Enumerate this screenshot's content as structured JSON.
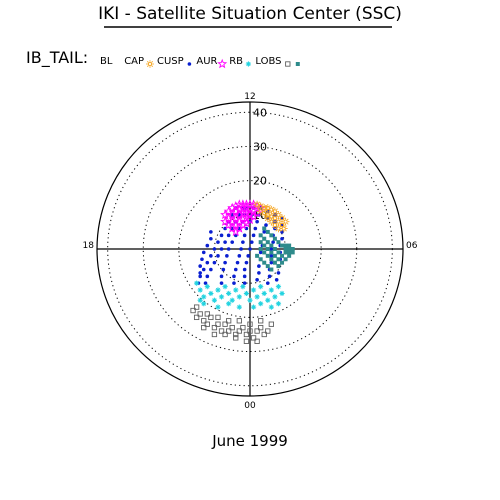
{
  "header": {
    "title": "IKI - Satellite Situation Center (SSC)",
    "legend_label": "IB_TAIL:"
  },
  "footer": {
    "caption": "June 1999"
  },
  "chart_data": {
    "type": "scatter",
    "projection": "polar",
    "radial_ticks": [
      "10",
      "20",
      "30",
      "40"
    ],
    "radial_values": [
      10,
      20,
      30,
      40
    ],
    "rmax": 43,
    "angular_labels": [
      {
        "text": "12",
        "angle_deg": 90
      },
      {
        "text": "18",
        "angle_deg": 180
      },
      {
        "text": "00",
        "angle_deg": 270
      },
      {
        "text": "06",
        "angle_deg": 0
      }
    ],
    "grid": true,
    "legend": [
      {
        "name": "BL",
        "color": "#000000",
        "marker": "none"
      },
      {
        "name": "CAP",
        "color": "#f5a623",
        "marker": "sun"
      },
      {
        "name": "CUSP",
        "color": "#0a1fd1",
        "marker": "dot"
      },
      {
        "name": "AUR",
        "color": "#ff00ff",
        "marker": "star"
      },
      {
        "name": "RB",
        "color": "#22d3e0",
        "marker": "asterisk"
      },
      {
        "name": "LOBS",
        "color": "#606060",
        "marker": "square"
      },
      {
        "name": "",
        "color": "#2e8b8b",
        "marker": "filled-square"
      }
    ],
    "series": [
      {
        "name": "CUSP",
        "color": "#0a1fd1",
        "marker": "dot",
        "points": [
          [
            -4,
            12
          ],
          [
            -5,
            10
          ],
          [
            -6,
            8
          ],
          [
            -7,
            6
          ],
          [
            -8,
            4
          ],
          [
            -9,
            2
          ],
          [
            -10,
            0
          ],
          [
            -11,
            -2
          ],
          [
            -12,
            -4
          ],
          [
            -13,
            -6
          ],
          [
            -14,
            -8
          ],
          [
            -14.5,
            -10
          ],
          [
            -2,
            12
          ],
          [
            -3,
            10
          ],
          [
            -4,
            8
          ],
          [
            -5,
            6
          ],
          [
            -6,
            4
          ],
          [
            -7,
            2
          ],
          [
            -8,
            0
          ],
          [
            -9,
            -2
          ],
          [
            -10,
            -4
          ],
          [
            -11,
            -6
          ],
          [
            -12,
            -8
          ],
          [
            -12.5,
            -10
          ],
          [
            -1,
            12
          ],
          [
            -1.5,
            10
          ],
          [
            -2,
            8
          ],
          [
            -3,
            6
          ],
          [
            -4,
            4
          ],
          [
            -5,
            2
          ],
          [
            -6,
            0
          ],
          [
            -6.5,
            -2
          ],
          [
            -7,
            -4
          ],
          [
            -7.5,
            -6
          ],
          [
            -8,
            -8
          ],
          [
            -8,
            -10
          ],
          [
            1,
            12
          ],
          [
            0.5,
            10
          ],
          [
            0,
            8
          ],
          [
            -1,
            6
          ],
          [
            -1.5,
            4
          ],
          [
            -2,
            2
          ],
          [
            -2.5,
            0
          ],
          [
            -3,
            -2
          ],
          [
            -3.5,
            -4
          ],
          [
            -4,
            -6
          ],
          [
            -4.5,
            -8
          ],
          [
            -4.5,
            -10
          ],
          [
            3,
            12
          ],
          [
            2.5,
            10
          ],
          [
            2,
            8
          ],
          [
            1.5,
            6
          ],
          [
            1,
            4
          ],
          [
            0.5,
            2
          ],
          [
            0,
            0
          ],
          [
            -0.5,
            -2
          ],
          [
            -1,
            -4
          ],
          [
            -1.5,
            -6
          ],
          [
            -1.5,
            -8
          ],
          [
            -1.5,
            -10
          ],
          [
            5,
            11
          ],
          [
            5,
            9
          ],
          [
            4.5,
            7
          ],
          [
            4,
            5
          ],
          [
            4,
            3
          ],
          [
            3.5,
            1
          ],
          [
            3,
            -1
          ],
          [
            3,
            -3
          ],
          [
            2.5,
            -5
          ],
          [
            2.5,
            -7
          ],
          [
            2,
            -9
          ],
          [
            7,
            10
          ],
          [
            7,
            8
          ],
          [
            7,
            6
          ],
          [
            6.5,
            4
          ],
          [
            6.5,
            2
          ],
          [
            6,
            0
          ],
          [
            6,
            -2
          ],
          [
            6,
            -4
          ],
          [
            5.5,
            -6
          ],
          [
            5.5,
            -8
          ],
          [
            5,
            -10
          ],
          [
            9,
            9
          ],
          [
            9,
            7
          ],
          [
            9,
            5
          ],
          [
            9,
            3
          ],
          [
            8.5,
            1
          ],
          [
            8.5,
            -1
          ],
          [
            8.5,
            -3
          ],
          [
            8,
            -5
          ],
          [
            8,
            -7
          ],
          [
            7.5,
            -9
          ],
          [
            -11,
            5
          ],
          [
            -11,
            3
          ],
          [
            -12,
            1
          ],
          [
            -13,
            -1
          ],
          [
            -13.5,
            -3
          ],
          [
            -14,
            -5
          ],
          [
            -14,
            -7
          ]
        ]
      },
      {
        "name": "AUR",
        "color": "#ff00ff",
        "marker": "star",
        "points": [
          [
            -7,
            10
          ],
          [
            -6,
            11
          ],
          [
            -5,
            12
          ],
          [
            -4,
            12.5
          ],
          [
            -3,
            13
          ],
          [
            -2,
            13
          ],
          [
            -1,
            13
          ],
          [
            0,
            13
          ],
          [
            1,
            13
          ],
          [
            2,
            12.5
          ],
          [
            3,
            12
          ],
          [
            -7,
            8
          ],
          [
            -6,
            9
          ],
          [
            -5,
            10
          ],
          [
            -4,
            11
          ],
          [
            -3,
            11.5
          ],
          [
            -2,
            12
          ],
          [
            -1,
            12
          ],
          [
            0,
            11.5
          ],
          [
            1,
            11
          ],
          [
            2,
            10.5
          ],
          [
            -6,
            7
          ],
          [
            -5,
            8
          ],
          [
            -4,
            9
          ],
          [
            -3,
            10
          ],
          [
            -2,
            10.5
          ],
          [
            -1,
            10.5
          ],
          [
            0,
            10
          ],
          [
            1,
            9.5
          ],
          [
            -5,
            6
          ],
          [
            -4,
            7
          ],
          [
            -3,
            8
          ],
          [
            -2,
            9
          ],
          [
            -1,
            9
          ],
          [
            0,
            8.5
          ],
          [
            -4,
            5
          ],
          [
            -3,
            6
          ],
          [
            -2,
            7
          ],
          [
            -1,
            7.5
          ]
        ]
      },
      {
        "name": "CAP",
        "color": "#f5a623",
        "marker": "sun",
        "points": [
          [
            2,
            13
          ],
          [
            3,
            12.5
          ],
          [
            4,
            12
          ],
          [
            5,
            12
          ],
          [
            6,
            11.5
          ],
          [
            7,
            11
          ],
          [
            8,
            10
          ],
          [
            9,
            9
          ],
          [
            10,
            8
          ],
          [
            3,
            11
          ],
          [
            4,
            10.5
          ],
          [
            5,
            10
          ],
          [
            6,
            9.5
          ],
          [
            7,
            9
          ],
          [
            8,
            8
          ],
          [
            9,
            7
          ],
          [
            9.5,
            6
          ],
          [
            5,
            9
          ],
          [
            6,
            8
          ],
          [
            7,
            7
          ],
          [
            8,
            6
          ]
        ]
      },
      {
        "name": "RB",
        "color": "#22d3e0",
        "marker": "asterisk",
        "points": [
          [
            -15,
            -10
          ],
          [
            -14,
            -12
          ],
          [
            -13,
            -14
          ],
          [
            -12,
            -11
          ],
          [
            -11,
            -13
          ],
          [
            -10,
            -15
          ],
          [
            -9,
            -12
          ],
          [
            -8,
            -14
          ],
          [
            -7,
            -11
          ],
          [
            -6,
            -13
          ],
          [
            -5,
            -15
          ],
          [
            -4,
            -12
          ],
          [
            -3,
            -14
          ],
          [
            -2,
            -11
          ],
          [
            -1,
            -13
          ],
          [
            0,
            -15
          ],
          [
            1,
            -12
          ],
          [
            2,
            -14
          ],
          [
            3,
            -11
          ],
          [
            4,
            -13
          ],
          [
            5,
            -15
          ],
          [
            6,
            -12
          ],
          [
            7,
            -14
          ],
          [
            8,
            -11
          ],
          [
            9,
            -13
          ],
          [
            -13,
            -16
          ],
          [
            -9,
            -17
          ],
          [
            -3,
            -17
          ],
          [
            3,
            -16
          ],
          [
            8,
            -16
          ],
          [
            -14,
            -15
          ],
          [
            -6,
            -16
          ],
          [
            1,
            -17
          ],
          [
            6,
            -17
          ]
        ]
      },
      {
        "name": "LOBS",
        "color": "#606060",
        "marker": "square",
        "points": [
          [
            -16,
            -18
          ],
          [
            -15,
            -20
          ],
          [
            -14,
            -19
          ],
          [
            -13,
            -21
          ],
          [
            -12,
            -22
          ],
          [
            -11,
            -20
          ],
          [
            -10,
            -23
          ],
          [
            -9,
            -22
          ],
          [
            -8,
            -24
          ],
          [
            -7,
            -22
          ],
          [
            -6,
            -24
          ],
          [
            -5,
            -23
          ],
          [
            -4,
            -25
          ],
          [
            -3,
            -24
          ],
          [
            -2,
            -23
          ],
          [
            -1,
            -25
          ],
          [
            0,
            -24
          ],
          [
            1,
            -26
          ],
          [
            2,
            -24
          ],
          [
            3,
            -23
          ],
          [
            4,
            -25
          ],
          [
            5,
            -24
          ],
          [
            6,
            -22
          ],
          [
            -15,
            -17
          ],
          [
            -12,
            -19
          ],
          [
            -9,
            -20
          ],
          [
            -6,
            -21
          ],
          [
            -3,
            -21
          ],
          [
            0,
            -22
          ],
          [
            3,
            -21
          ],
          [
            -13,
            -23
          ],
          [
            -10,
            -25
          ],
          [
            -7,
            -25
          ],
          [
            -4,
            -26
          ],
          [
            -1,
            -27
          ],
          [
            2,
            -27
          ]
        ]
      },
      {
        "name": "",
        "color": "#2e8b8b",
        "marker": "filled-square",
        "points": [
          [
            4,
            6
          ],
          [
            5,
            5
          ],
          [
            6,
            4
          ],
          [
            7,
            3
          ],
          [
            8,
            2
          ],
          [
            9,
            1
          ],
          [
            10,
            0
          ],
          [
            11,
            -1
          ],
          [
            3,
            4
          ],
          [
            4,
            3
          ],
          [
            5,
            2
          ],
          [
            6,
            1
          ],
          [
            7,
            0
          ],
          [
            8,
            -1
          ],
          [
            9,
            -2
          ],
          [
            10,
            -3
          ],
          [
            3,
            2
          ],
          [
            4,
            1
          ],
          [
            5,
            0
          ],
          [
            6,
            -1
          ],
          [
            7,
            -2
          ],
          [
            8,
            -3
          ],
          [
            9,
            -4
          ],
          [
            10,
            1
          ],
          [
            11,
            1
          ],
          [
            11,
            0
          ],
          [
            10,
            -1
          ],
          [
            12,
            0
          ],
          [
            12,
            -1
          ],
          [
            11,
            -2
          ],
          [
            3,
            0
          ],
          [
            4,
            -1
          ],
          [
            5,
            -2
          ],
          [
            6,
            -3
          ],
          [
            7,
            -4
          ],
          [
            8,
            -5
          ],
          [
            2,
            -2
          ],
          [
            3,
            -3
          ],
          [
            4,
            -4
          ],
          [
            5,
            -5
          ],
          [
            6,
            -6
          ]
        ]
      }
    ]
  }
}
